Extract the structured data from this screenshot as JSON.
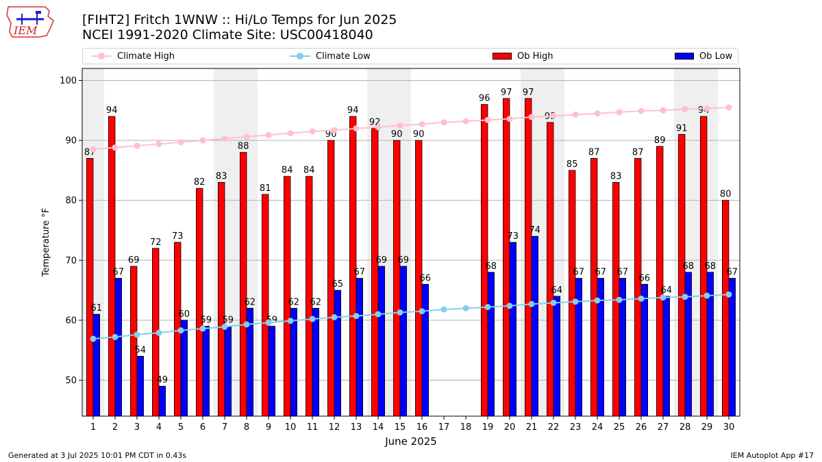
{
  "title_line1": "[FIHT2] Fritch 1WNW :: Hi/Lo Temps for Jun 2025",
  "title_line2": "NCEI 1991-2020 Climate Site: USC00418040",
  "logo_text": "IEM",
  "footer_left": "Generated at 3 Jul 2025 10:01 PM CDT in 0.43s",
  "footer_right": "IEM Autoplot App #17",
  "legend": [
    {
      "label": "Climate High",
      "kind": "line",
      "color": "#ffc0cb"
    },
    {
      "label": "Climate Low",
      "kind": "line",
      "color": "#87ceeb"
    },
    {
      "label": "Ob High",
      "kind": "bar",
      "color": "#ff0000"
    },
    {
      "label": "Ob Low",
      "kind": "bar",
      "color": "#0000ff"
    }
  ],
  "chart_data": {
    "type": "bar",
    "xlabel": "June 2025",
    "ylabel": "Temperature °F",
    "ylim": [
      44,
      102
    ],
    "yticks": [
      50,
      60,
      70,
      80,
      90,
      100
    ],
    "grid": "horizontal",
    "legend_position": "top",
    "weekend_shading_color": "#efefef",
    "weekend_days": [
      1,
      7,
      8,
      14,
      15,
      21,
      22,
      28,
      29
    ],
    "categories": [
      "1",
      "2",
      "3",
      "4",
      "5",
      "6",
      "7",
      "8",
      "9",
      "10",
      "11",
      "12",
      "13",
      "14",
      "15",
      "16",
      "17",
      "18",
      "19",
      "20",
      "21",
      "22",
      "23",
      "24",
      "25",
      "26",
      "27",
      "28",
      "29",
      "30"
    ],
    "series": [
      {
        "name": "Ob High",
        "type": "bar",
        "color": "#ff0000",
        "values": [
          87,
          94,
          69,
          72,
          73,
          82,
          83,
          88,
          81,
          84,
          84,
          90,
          94,
          92,
          90,
          90,
          null,
          null,
          96,
          97,
          97,
          93,
          85,
          87,
          83,
          87,
          89,
          91,
          94,
          80
        ]
      },
      {
        "name": "Ob Low",
        "type": "bar",
        "color": "#0000ff",
        "values": [
          61,
          67,
          54,
          49,
          60,
          59,
          59,
          62,
          59,
          62,
          62,
          65,
          67,
          69,
          69,
          66,
          null,
          null,
          68,
          73,
          74,
          64,
          67,
          67,
          67,
          66,
          64,
          68,
          68,
          67
        ]
      },
      {
        "name": "Climate High",
        "type": "line",
        "color": "#ffc0cb",
        "values": [
          88.5,
          88.8,
          89.1,
          89.4,
          89.7,
          90.0,
          90.3,
          90.6,
          90.9,
          91.2,
          91.5,
          91.7,
          92.0,
          92.2,
          92.5,
          92.7,
          93.0,
          93.2,
          93.4,
          93.6,
          93.9,
          94.1,
          94.3,
          94.5,
          94.7,
          94.9,
          95.0,
          95.2,
          95.3,
          95.5
        ]
      },
      {
        "name": "Climate Low",
        "type": "line",
        "color": "#87ceeb",
        "values": [
          56.9,
          57.2,
          57.6,
          57.9,
          58.3,
          58.6,
          58.9,
          59.3,
          59.6,
          59.9,
          60.2,
          60.5,
          60.7,
          61.0,
          61.3,
          61.5,
          61.8,
          62.0,
          62.2,
          62.4,
          62.7,
          62.9,
          63.1,
          63.3,
          63.4,
          63.6,
          63.8,
          63.9,
          64.1,
          64.3
        ]
      }
    ]
  }
}
